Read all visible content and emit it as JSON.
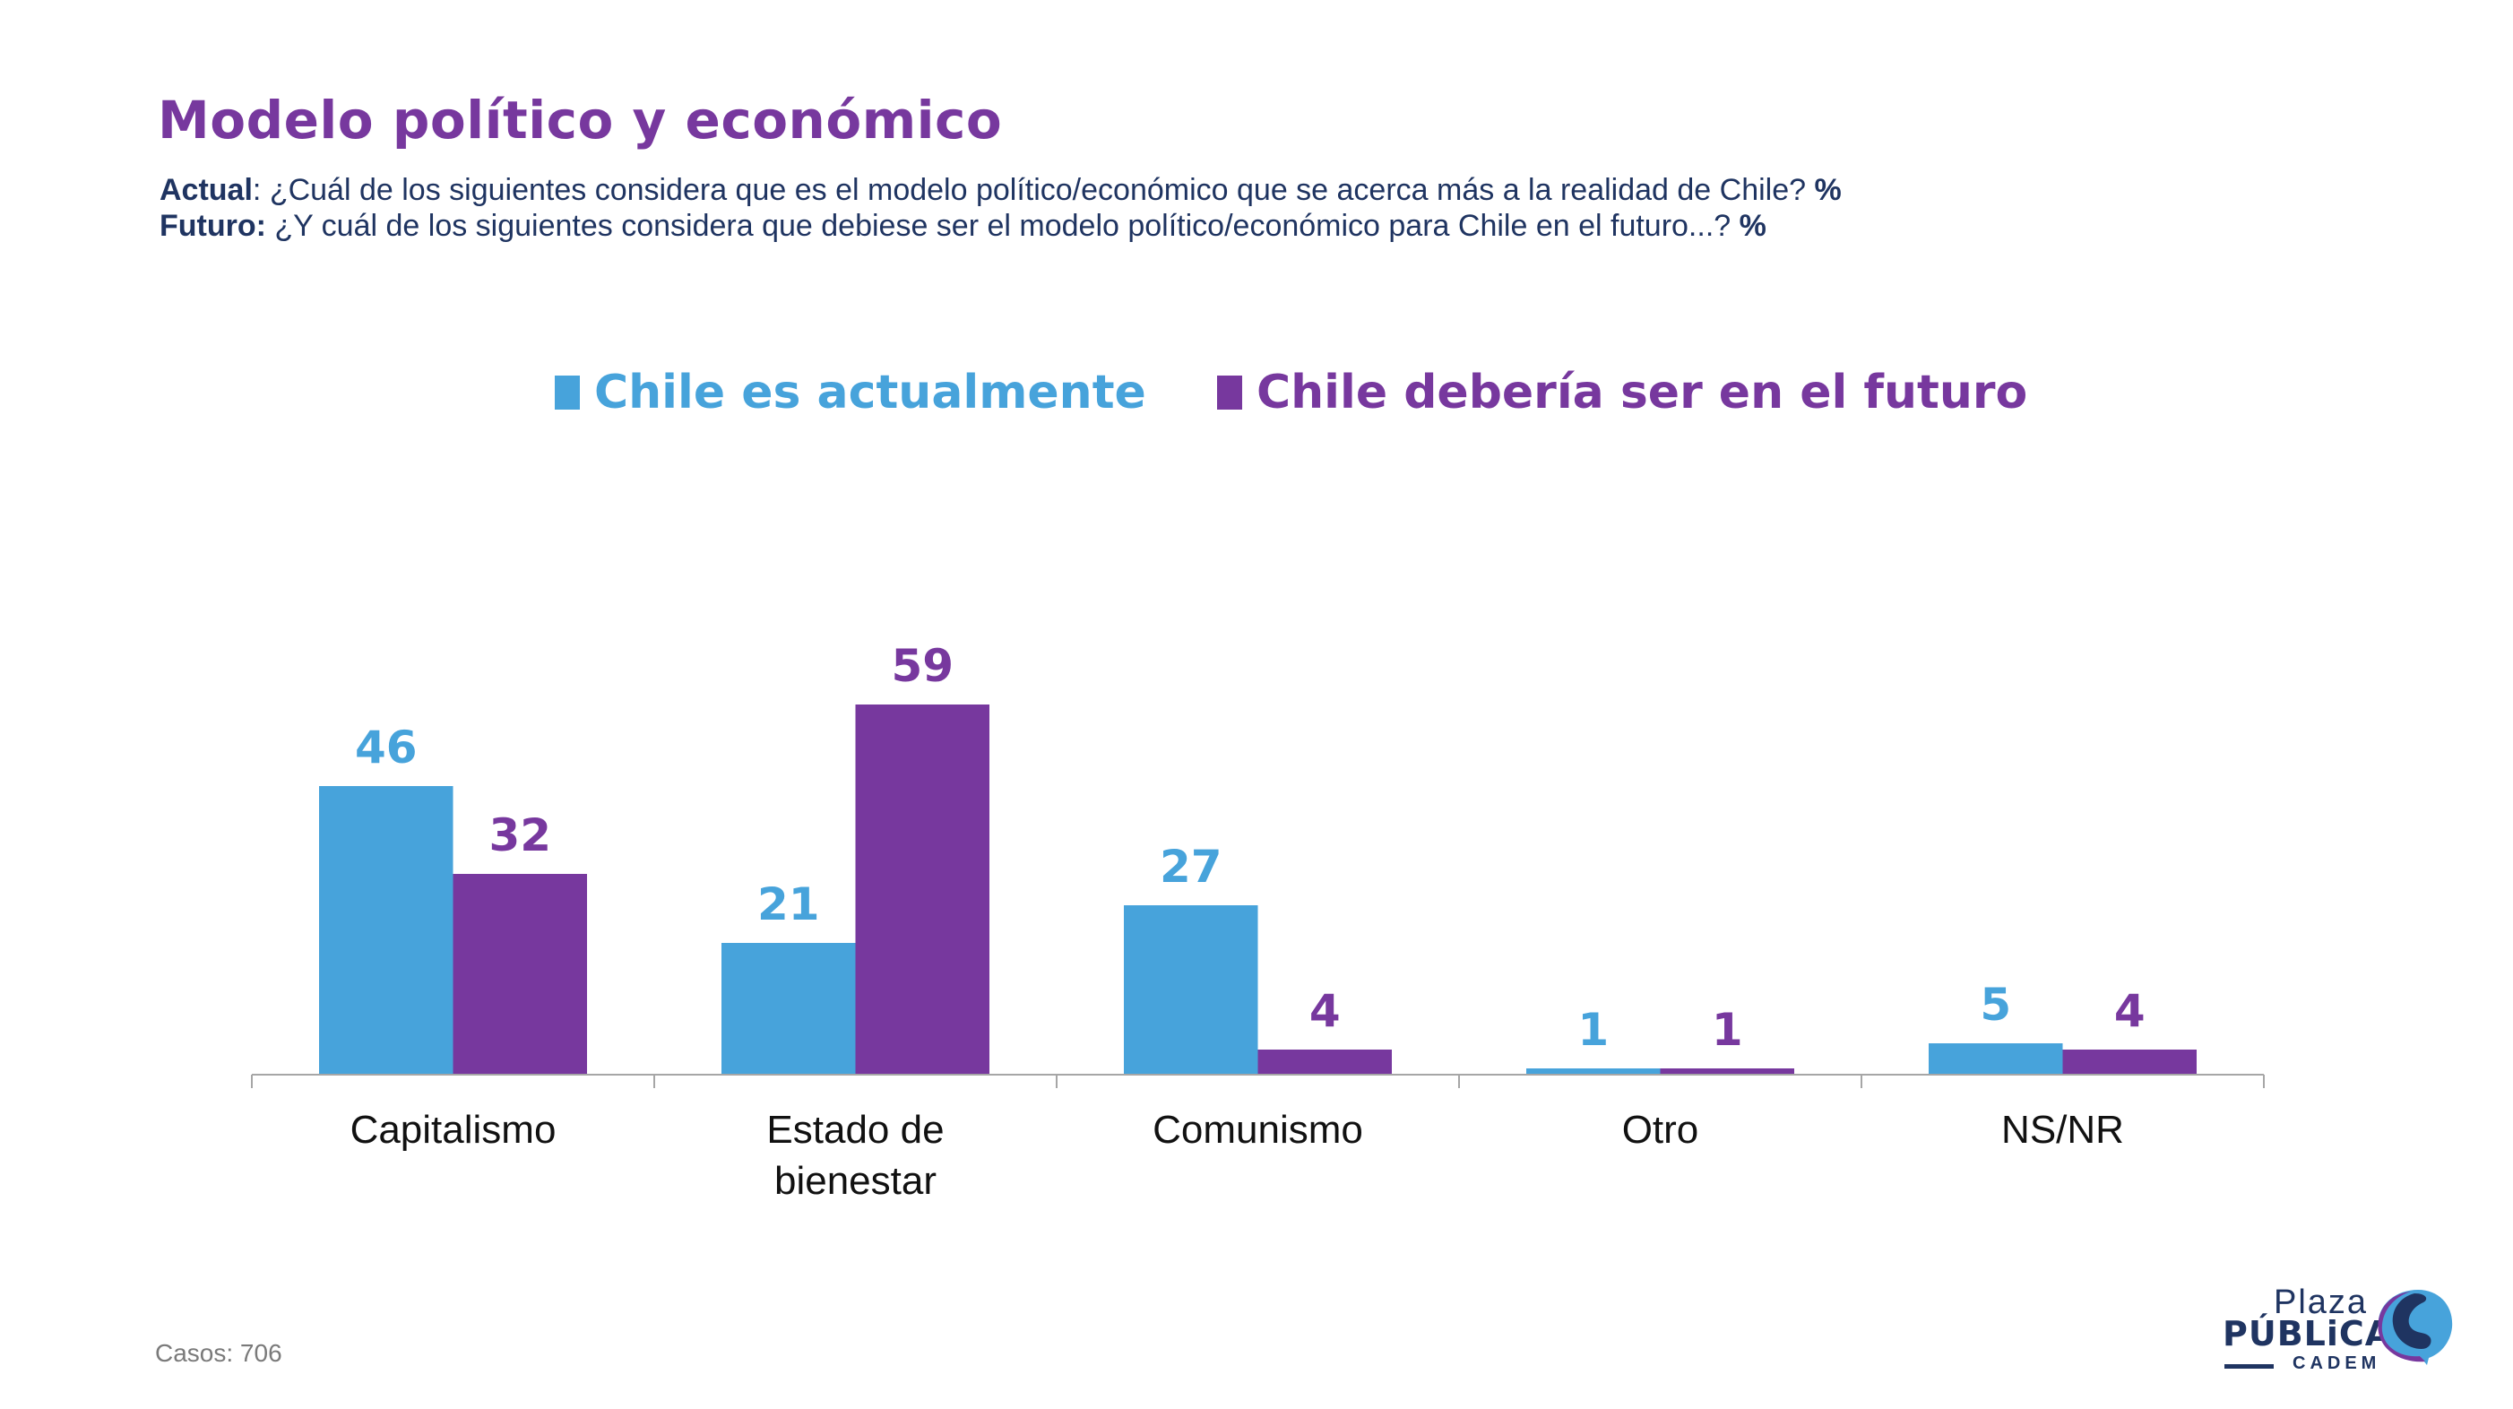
{
  "header": {
    "title": "Modelo político y económico",
    "subtitle_lines": [
      {
        "label": "Actual",
        "sep": ": ",
        "text": "¿Cuál de los siguientes considera que es el modelo político/económico que se acerca más a la realidad de Chile? ",
        "unit": "%"
      },
      {
        "label": "Futuro:",
        "sep": " ",
        "text": "¿Y cuál de los siguientes considera que debiese ser el modelo político/económico para Chile en el futuro...? ",
        "unit": "%"
      }
    ]
  },
  "colors": {
    "actual": "#47a3db",
    "futuro": "#77389e",
    "title": "#77389e",
    "subtitle": "#1f3461",
    "axis": "#a6a6a6"
  },
  "chart_data": {
    "type": "bar",
    "title": "Modelo político y económico",
    "xlabel": "",
    "ylabel": "%",
    "ylim": [
      0,
      100
    ],
    "grid": false,
    "legend_position": "top-center",
    "categories": [
      [
        "Capitalismo"
      ],
      [
        "Estado de",
        "bienestar"
      ],
      [
        "Comunismo"
      ],
      [
        "Otro"
      ],
      [
        "NS/NR"
      ]
    ],
    "series": [
      {
        "name": "Chile es actualmente",
        "color": "#47a3db",
        "values": [
          46,
          21,
          27,
          1,
          5
        ]
      },
      {
        "name": "Chile debería ser en el futuro",
        "color": "#77389e",
        "values": [
          32,
          59,
          4,
          1,
          4
        ]
      }
    ]
  },
  "footer": {
    "cases": "Casos: 706"
  },
  "logo": {
    "line1": "Plaza",
    "line2": "PÚBLiCA",
    "line3": "CADEM"
  }
}
